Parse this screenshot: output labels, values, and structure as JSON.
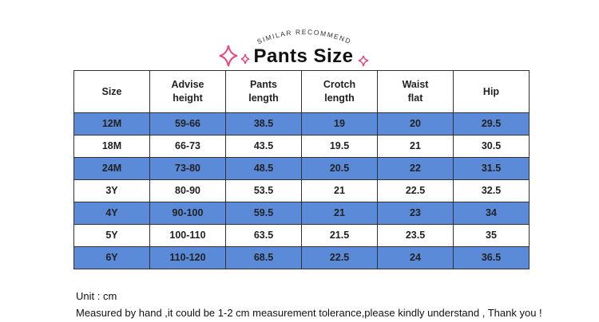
{
  "header": {
    "kicker": "SIMILAR RECOMMEND",
    "title": "Pants Size"
  },
  "table": {
    "columns": [
      "Size",
      "Advise\nheight",
      "Pants\nlength",
      "Crotch\nlength",
      "Waist\nflat",
      "Hip"
    ],
    "rows": [
      [
        "12M",
        "59-66",
        "38.5",
        "19",
        "20",
        "29.5"
      ],
      [
        "18M",
        "66-73",
        "43.5",
        "19.5",
        "21",
        "30.5"
      ],
      [
        "24M",
        "73-80",
        "48.5",
        "20.5",
        "22",
        "31.5"
      ],
      [
        "3Y",
        "80-90",
        "53.5",
        "21",
        "22.5",
        "32.5"
      ],
      [
        "4Y",
        "90-100",
        "59.5",
        "21",
        "23",
        "34"
      ],
      [
        "5Y",
        "100-110",
        "63.5",
        "21.5",
        "23.5",
        "35"
      ],
      [
        "6Y",
        "110-120",
        "68.5",
        "22.5",
        "24",
        "36.5"
      ]
    ]
  },
  "notes": {
    "unit": "Unit : cm",
    "disclaimer": "Measured by hand ,it could be 1-2 cm measurement tolerance,please kindly understand , Thank you !"
  }
}
